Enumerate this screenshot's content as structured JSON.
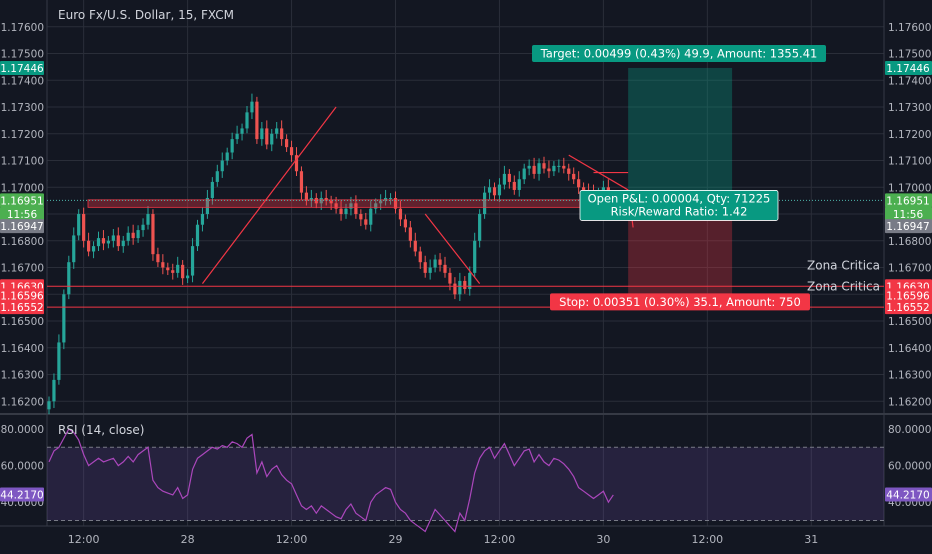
{
  "symbol": {
    "title": "Euro Fx/U.S. Dollar, 15, FXCM"
  },
  "price_axis": {
    "ticks": [
      "1.17600",
      "1.17500",
      "1.17400",
      "1.17300",
      "1.17200",
      "1.17100",
      "1.17000",
      "1.16900",
      "1.16800",
      "1.16700",
      "1.16600",
      "1.16500",
      "1.16400",
      "1.16300",
      "1.16200"
    ],
    "tick_values": [
      1.176,
      1.175,
      1.174,
      1.173,
      1.172,
      1.171,
      1.17,
      1.169,
      1.168,
      1.167,
      1.166,
      1.165,
      1.164,
      1.163,
      1.162
    ],
    "range": [
      1.1616,
      1.177
    ]
  },
  "badges": [
    {
      "label": "1.17446",
      "value": 1.17446,
      "color": "#089981"
    },
    {
      "label": "1.16951",
      "value": 1.16951,
      "color": "#4caf50"
    },
    {
      "label": "11:56",
      "value": 1.16901,
      "color": "#4caf50"
    },
    {
      "label": "1.16947",
      "value": 1.16855,
      "color": "#787b86"
    },
    {
      "label": "1.16630",
      "value": 1.1663,
      "color": "#f23645"
    },
    {
      "label": "1.16596",
      "value": 1.16596,
      "color": "#f23645"
    },
    {
      "label": "1.16552",
      "value": 1.16552,
      "color": "#f23645"
    }
  ],
  "time_axis": {
    "labels": [
      "12:00",
      "28",
      "12:00",
      "29",
      "12:00",
      "30",
      "12:00",
      "31"
    ],
    "index": [
      7,
      28,
      49,
      70,
      91,
      112,
      133,
      154
    ]
  },
  "annotations": {
    "target": "Target: 0.00499 (0.43%) 49.9, Amount: 1355.41",
    "stop": "Stop: 0.00351 (0.30%) 35.1, Amount: 750",
    "open_pnl": "Open P&L: 0.00004, Qty: 71225",
    "risk_reward": "Risk/Reward Ratio: 1.42",
    "zona1": "Zona Critica",
    "zona2": "Zona Critica",
    "zona1_value": 1.16708,
    "zona2_value": 1.1663
  },
  "position": {
    "entry": 1.16947,
    "target": 1.17446,
    "stop": 1.16596,
    "start_index": 117,
    "end_index": 138
  },
  "rsi": {
    "title": "RSI (14, close)",
    "ticks": [
      "80.0000",
      "60.0000",
      "40.0000"
    ],
    "tick_values": [
      80,
      60,
      40
    ],
    "current_label": "44.2170",
    "current_value": 44.217,
    "upper": 70,
    "lower": 30,
    "range": [
      27,
      86
    ]
  },
  "chart_data": {
    "type": "candlestick",
    "title": "Euro Fx/U.S. Dollar, 15, FXCM",
    "close": [
      1.162,
      1.1628,
      1.1642,
      1.166,
      1.1672,
      1.1682,
      1.169,
      1.168,
      1.1676,
      1.1678,
      1.1681,
      1.1679,
      1.168,
      1.1682,
      1.1678,
      1.168,
      1.1683,
      1.1681,
      1.1684,
      1.1686,
      1.169,
      1.1675,
      1.1672,
      1.167,
      1.1669,
      1.1668,
      1.1671,
      1.1666,
      1.1667,
      1.1678,
      1.1686,
      1.169,
      1.1696,
      1.1702,
      1.1706,
      1.171,
      1.1713,
      1.1718,
      1.172,
      1.1722,
      1.1728,
      1.1732,
      1.1718,
      1.1722,
      1.1716,
      1.172,
      1.1722,
      1.1718,
      1.1715,
      1.1712,
      1.1706,
      1.1698,
      1.1695,
      1.1696,
      1.1694,
      1.1696,
      1.1695,
      1.1694,
      1.1692,
      1.169,
      1.1692,
      1.1694,
      1.169,
      1.1688,
      1.1686,
      1.1692,
      1.1694,
      1.1695,
      1.1696,
      1.1696,
      1.1692,
      1.1688,
      1.1685,
      1.168,
      1.1676,
      1.1672,
      1.1668,
      1.167,
      1.1673,
      1.1671,
      1.1668,
      1.1664,
      1.166,
      1.1665,
      1.1662,
      1.1668,
      1.168,
      1.169,
      1.1698,
      1.17,
      1.1697,
      1.1701,
      1.1705,
      1.1702,
      1.1699,
      1.1703,
      1.1707,
      1.1708,
      1.1705,
      1.1709,
      1.1707,
      1.1706,
      1.1708,
      1.1708,
      1.1707,
      1.1705,
      1.1703,
      1.17,
      1.1699,
      1.1698,
      1.1697,
      1.1698,
      1.17,
      1.1697,
      1.1695
    ],
    "rsi": [
      62,
      68,
      70,
      75,
      80,
      78,
      74,
      66,
      60,
      62,
      64,
      62,
      63,
      64,
      60,
      62,
      65,
      62,
      66,
      68,
      70,
      52,
      48,
      46,
      45,
      44,
      48,
      42,
      44,
      58,
      64,
      66,
      68,
      70,
      69,
      71,
      70,
      73,
      72,
      70,
      75,
      77,
      56,
      62,
      54,
      58,
      60,
      55,
      52,
      50,
      44,
      38,
      36,
      38,
      34,
      38,
      36,
      34,
      32,
      31,
      36,
      39,
      34,
      32,
      30,
      40,
      44,
      46,
      48,
      47,
      40,
      36,
      34,
      30,
      28,
      26,
      24,
      30,
      36,
      33,
      30,
      27,
      24,
      34,
      30,
      42,
      56,
      64,
      68,
      70,
      64,
      68,
      72,
      66,
      60,
      64,
      68,
      69,
      62,
      66,
      62,
      60,
      64,
      63,
      61,
      58,
      54,
      48,
      46,
      44,
      42,
      44,
      46,
      40,
      44
    ]
  }
}
